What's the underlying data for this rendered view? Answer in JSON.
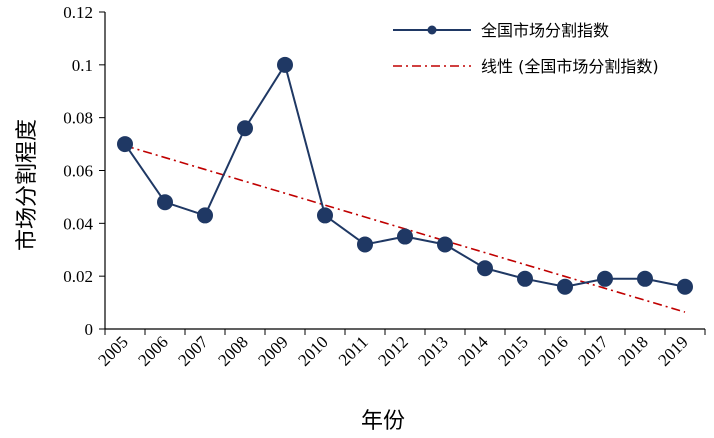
{
  "chart_data": {
    "type": "line",
    "xlabel": "年份",
    "ylabel": "市场分割程度",
    "ylim": [
      0,
      0.12
    ],
    "yticks": [
      "0",
      "0.02",
      "0.04",
      "0.06",
      "0.08",
      "0.1",
      "0.12"
    ],
    "categories": [
      "2005",
      "2006",
      "2007",
      "2008",
      "2009",
      "2010",
      "2011",
      "2012",
      "2013",
      "2014",
      "2015",
      "2016",
      "2017",
      "2018",
      "2019"
    ],
    "grid": false,
    "legend_position": "top-right",
    "series": [
      {
        "name": "全国市场分割指数",
        "values": [
          0.07,
          0.048,
          0.043,
          0.076,
          0.1,
          0.043,
          0.032,
          0.035,
          0.032,
          0.023,
          0.019,
          0.016,
          0.019,
          0.019,
          0.016
        ],
        "color": "#1f3864",
        "style": "solid-with-markers"
      },
      {
        "name": "线性 (全国市场分割指数)",
        "values": [
          0.0694,
          0.0649,
          0.0604,
          0.0559,
          0.0514,
          0.0469,
          0.0424,
          0.0379,
          0.0334,
          0.0289,
          0.0244,
          0.0199,
          0.0154,
          0.0109,
          0.0064
        ],
        "color": "#c00000",
        "style": "dash-dot"
      }
    ]
  }
}
